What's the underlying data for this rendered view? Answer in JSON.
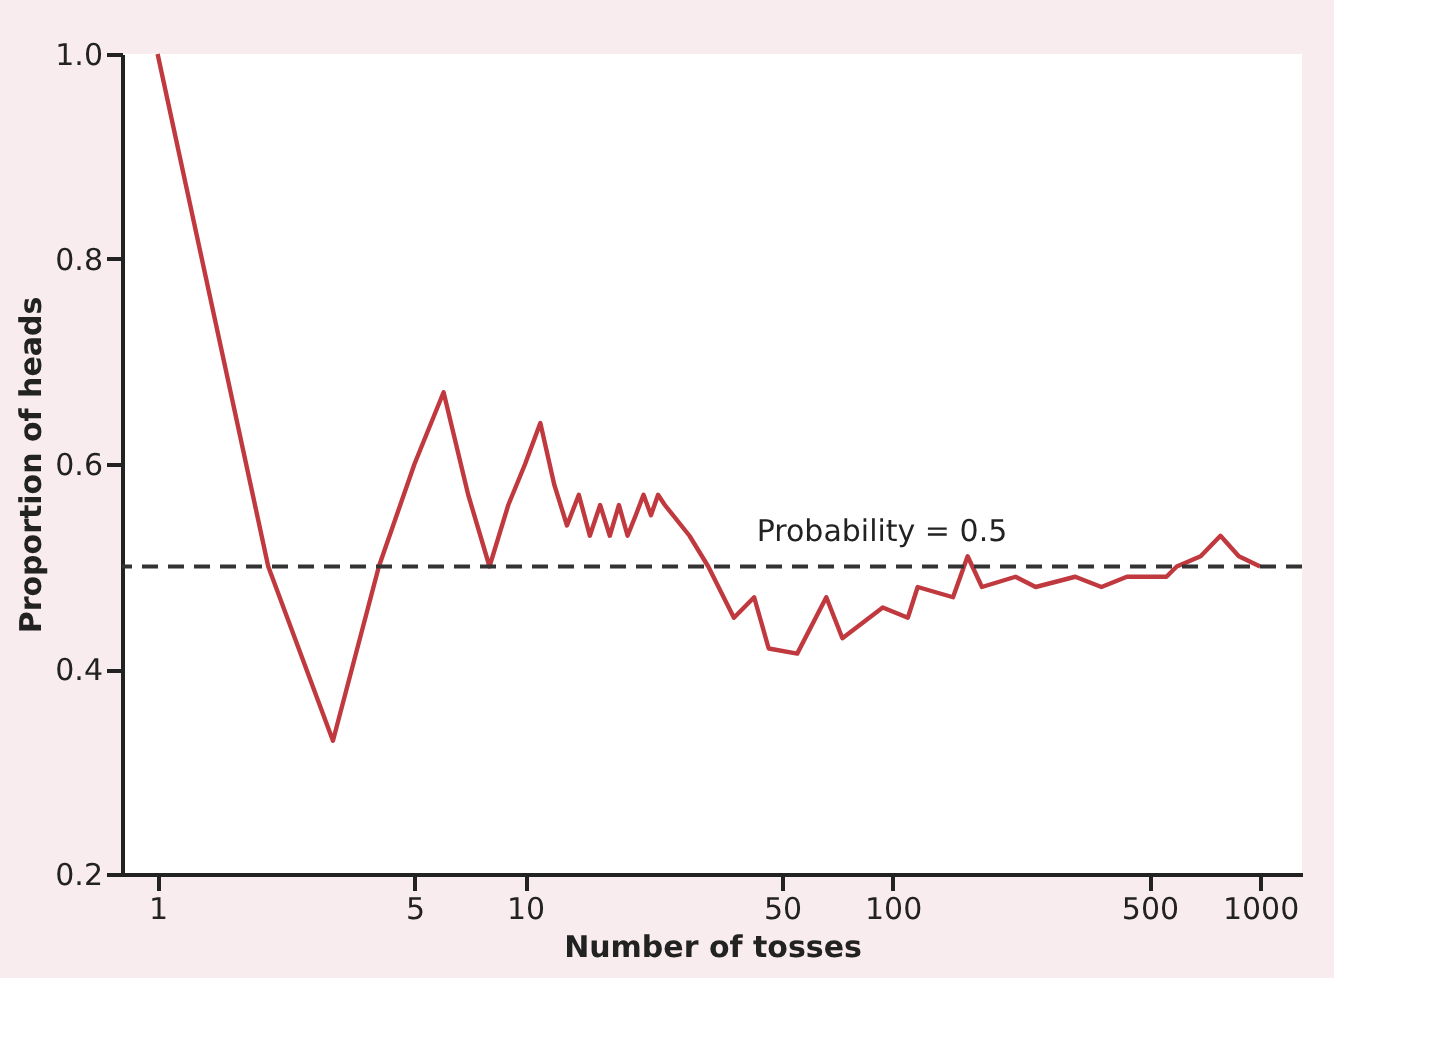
{
  "chart_data": {
    "type": "line",
    "xlabel": "Number of tosses",
    "ylabel": "Proportion of heads",
    "x": [
      1,
      2,
      3,
      4,
      5,
      6,
      7,
      8,
      9,
      10,
      11,
      12,
      13,
      14,
      15,
      16,
      17,
      18,
      19,
      20,
      21,
      22,
      23,
      24,
      28,
      31.5,
      37,
      42,
      46,
      55,
      66,
      73,
      94,
      110,
      117,
      146,
      160,
      175,
      216,
      245,
      314,
      370,
      434,
      556,
      593,
      689,
      780,
      875,
      1000
    ],
    "series": [
      {
        "color": "#c0393f",
        "values": [
          1.0,
          0.5,
          0.33,
          0.5,
          0.6,
          0.67,
          0.57,
          0.5,
          0.56,
          0.6,
          0.64,
          0.58,
          0.54,
          0.57,
          0.53,
          0.56,
          0.53,
          0.56,
          0.53,
          0.55,
          0.57,
          0.55,
          0.57,
          0.56,
          0.53,
          0.5,
          0.45,
          0.47,
          0.42,
          0.415,
          0.47,
          0.43,
          0.46,
          0.45,
          0.48,
          0.47,
          0.51,
          0.48,
          0.49,
          0.48,
          0.49,
          0.48,
          0.49,
          0.49,
          0.5,
          0.51,
          0.53,
          0.51,
          0.5
        ]
      }
    ],
    "log": "x",
    "xlim": [
      0.8,
      1300
    ],
    "xticks": [
      1,
      5,
      10,
      50,
      100,
      500,
      1000
    ],
    "ylim": [
      0.2,
      1.0
    ],
    "yticks": [
      0.2,
      0.4,
      0.6,
      0.8,
      {
        "value": 1,
        "label": "1.0"
      }
    ],
    "grid": false,
    "marker": "none",
    "line_style": "solid",
    "ref_lines": [
      {
        "axis": "y",
        "value": 0.5,
        "label": "Probability = 0.5",
        "color": "#333333",
        "line_style": "dashed"
      }
    ]
  }
}
